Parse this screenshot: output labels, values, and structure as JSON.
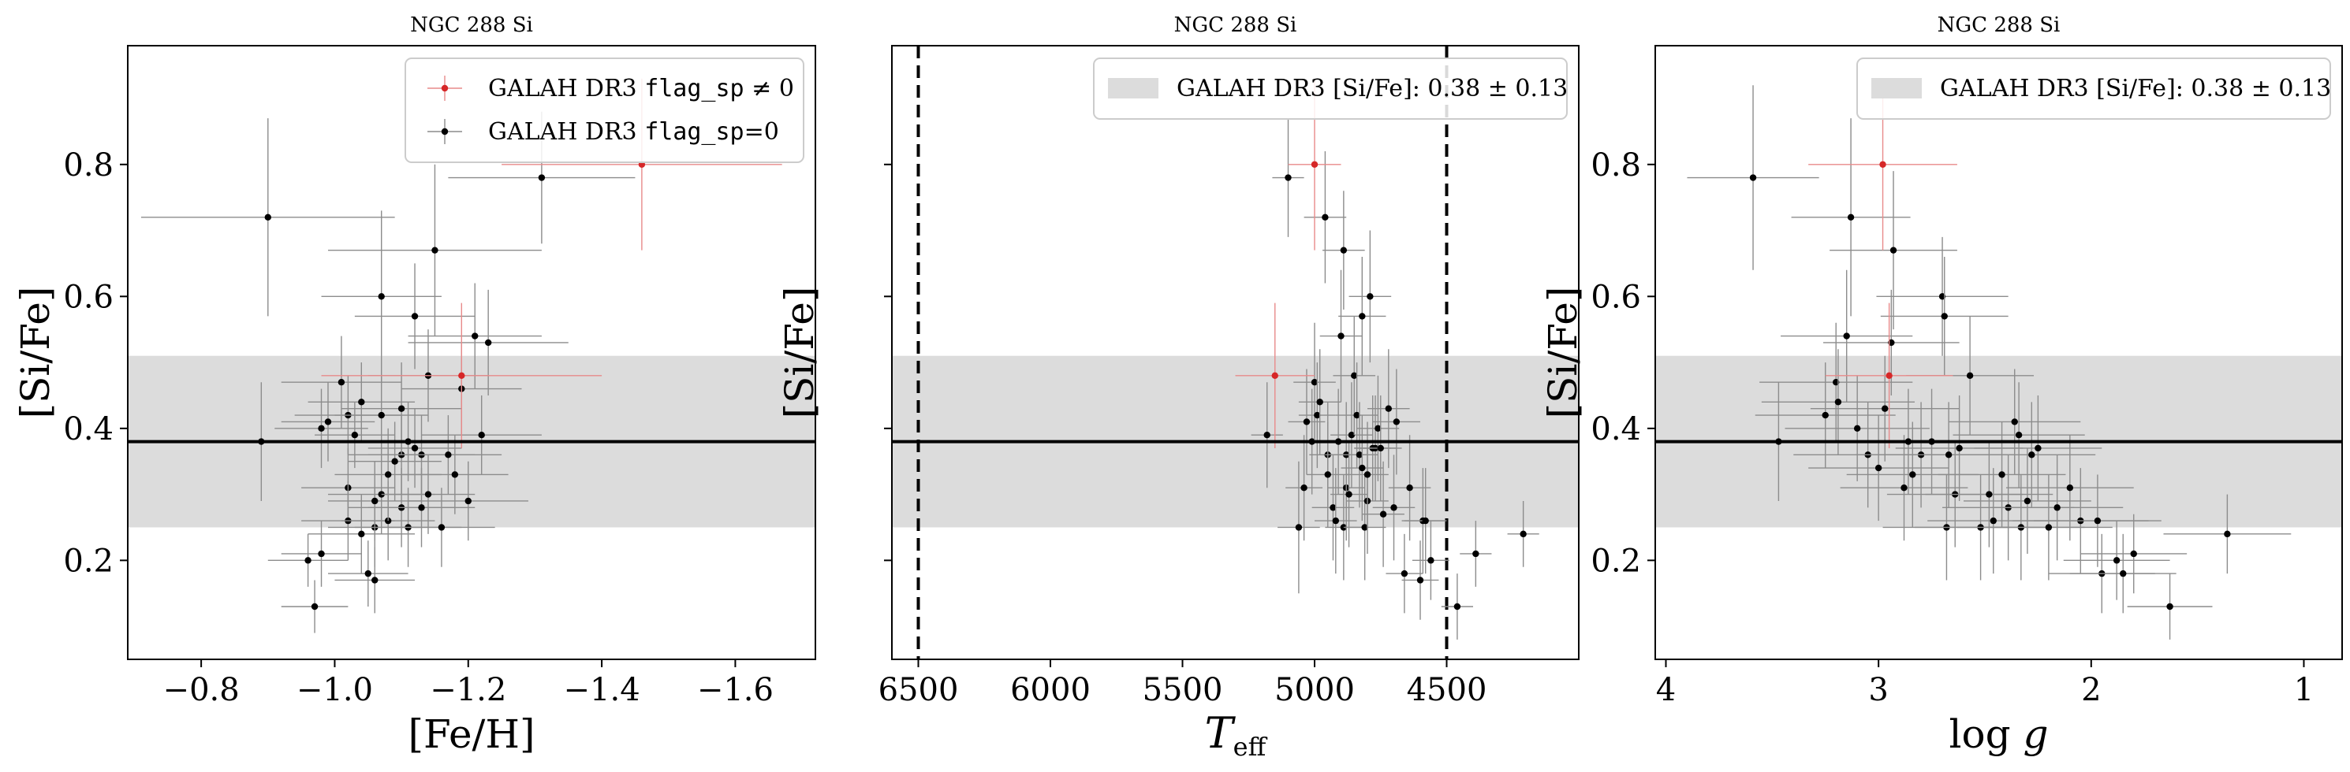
{
  "colors": {
    "normal": "#000000",
    "flagged": "#d62728",
    "band": "#dcdcdc",
    "errbar_normal": "#8c8c8c",
    "errbar_flagged": "#e88a8a"
  },
  "chart_data": [
    {
      "type": "scatter",
      "title": "NGC 288 Si",
      "xlabel": "[Fe/H]",
      "ylabel": "[Si/Fe]",
      "xlim": [
        -0.69,
        -1.72
      ],
      "ylim": [
        0.05,
        0.98
      ],
      "xticks": [
        -0.8,
        -1.0,
        -1.2,
        -1.4,
        -1.6
      ],
      "xtick_labels": [
        "−0.8",
        "−1.0",
        "−1.2",
        "−1.4",
        "−1.6"
      ],
      "yticks": [
        0.2,
        0.4,
        0.6,
        0.8
      ],
      "ytick_labels": [
        "0.2",
        "0.4",
        "0.6",
        "0.8"
      ],
      "reference": {
        "value": 0.38,
        "uncertainty": 0.13
      },
      "legend": {
        "position": "upper-right",
        "entries": [
          {
            "style": "flagged",
            "label_pre": "GALAH DR3 ",
            "label_code": "flag_sp",
            "label_post": " ≠ 0"
          },
          {
            "style": "normal",
            "label_pre": "GALAH DR3 ",
            "label_code": "flag_sp",
            "label_post": "=0"
          }
        ]
      },
      "series": [
        {
          "style": "normal",
          "points": [
            [
              -0.9,
              0.72,
              0.19,
              0.15
            ],
            [
              -0.89,
              0.38,
              0.12,
              0.09
            ],
            [
              -0.96,
              0.2,
              0.06,
              0.04
            ],
            [
              -0.97,
              0.13,
              0.05,
              0.04
            ],
            [
              -0.98,
              0.21,
              0.06,
              0.05
            ],
            [
              -0.98,
              0.4,
              0.07,
              0.06
            ],
            [
              -0.99,
              0.41,
              0.07,
              0.06
            ],
            [
              -1.01,
              0.47,
              0.09,
              0.07
            ],
            [
              -1.02,
              0.42,
              0.08,
              0.06
            ],
            [
              -1.02,
              0.31,
              0.07,
              0.06
            ],
            [
              -1.02,
              0.26,
              0.07,
              0.06
            ],
            [
              -1.03,
              0.39,
              0.06,
              0.05
            ],
            [
              -1.04,
              0.44,
              0.08,
              0.06
            ],
            [
              -1.04,
              0.24,
              0.08,
              0.06
            ],
            [
              -1.05,
              0.18,
              0.06,
              0.05
            ],
            [
              -1.06,
              0.17,
              0.06,
              0.05
            ],
            [
              -1.06,
              0.25,
              0.07,
              0.06
            ],
            [
              -1.06,
              0.29,
              0.07,
              0.06
            ],
            [
              -1.07,
              0.3,
              0.08,
              0.06
            ],
            [
              -1.07,
              0.42,
              0.07,
              0.06
            ],
            [
              -1.07,
              0.6,
              0.09,
              0.13
            ],
            [
              -1.08,
              0.26,
              0.07,
              0.06
            ],
            [
              -1.08,
              0.33,
              0.08,
              0.07
            ],
            [
              -1.09,
              0.35,
              0.07,
              0.06
            ],
            [
              -1.1,
              0.28,
              0.08,
              0.06
            ],
            [
              -1.1,
              0.36,
              0.08,
              0.06
            ],
            [
              -1.1,
              0.43,
              0.09,
              0.07
            ],
            [
              -1.11,
              0.25,
              0.08,
              0.06
            ],
            [
              -1.11,
              0.38,
              0.08,
              0.06
            ],
            [
              -1.12,
              0.37,
              0.07,
              0.06
            ],
            [
              -1.12,
              0.57,
              0.09,
              0.08
            ],
            [
              -1.13,
              0.28,
              0.08,
              0.06
            ],
            [
              -1.13,
              0.36,
              0.08,
              0.06
            ],
            [
              -1.14,
              0.3,
              0.07,
              0.06
            ],
            [
              -1.14,
              0.48,
              0.09,
              0.07
            ],
            [
              -1.15,
              0.67,
              0.16,
              0.13
            ],
            [
              -1.16,
              0.25,
              0.08,
              0.06
            ],
            [
              -1.17,
              0.36,
              0.08,
              0.06
            ],
            [
              -1.18,
              0.33,
              0.08,
              0.06
            ],
            [
              -1.19,
              0.46,
              0.09,
              0.07
            ],
            [
              -1.2,
              0.29,
              0.09,
              0.06
            ],
            [
              -1.21,
              0.54,
              0.1,
              0.08
            ],
            [
              -1.22,
              0.39,
              0.09,
              0.06
            ],
            [
              -1.23,
              0.53,
              0.12,
              0.08
            ],
            [
              -1.31,
              0.78,
              0.14,
              0.1
            ]
          ]
        },
        {
          "style": "flagged",
          "points": [
            [
              -1.19,
              0.48,
              0.21,
              0.11
            ],
            [
              -1.46,
              0.8,
              0.21,
              0.13
            ]
          ]
        }
      ]
    },
    {
      "type": "scatter",
      "title": "NGC 288 Si",
      "xlabel": "T_eff",
      "ylabel": "[Si/Fe]",
      "xlim": [
        6600,
        4000
      ],
      "ylim": [
        0.05,
        0.98
      ],
      "xticks": [
        6500,
        6000,
        5500,
        5000,
        4500
      ],
      "xtick_labels": [
        "6500",
        "6000",
        "5500",
        "5000",
        "4500"
      ],
      "yticks": [
        0.2,
        0.4,
        0.6,
        0.8
      ],
      "ytick_labels": [],
      "vlines": [
        6500,
        4500
      ],
      "reference": {
        "value": 0.38,
        "uncertainty": 0.13
      },
      "legend": {
        "position": "upper-right",
        "entries": [
          {
            "style": "band",
            "label_pre": "GALAH DR3 [Si/Fe]: 0.38 ± 0.13",
            "label_code": "",
            "label_post": ""
          }
        ]
      },
      "series": [
        {
          "style": "normal",
          "points": [
            [
              5180,
              0.39,
              60,
              0.08
            ],
            [
              5100,
              0.78,
              60,
              0.09
            ],
            [
              5060,
              0.25,
              80,
              0.1
            ],
            [
              5040,
              0.31,
              70,
              0.08
            ],
            [
              5030,
              0.41,
              70,
              0.08
            ],
            [
              5010,
              0.38,
              70,
              0.08
            ],
            [
              5000,
              0.47,
              80,
              0.09
            ],
            [
              4990,
              0.42,
              70,
              0.08
            ],
            [
              4980,
              0.44,
              80,
              0.08
            ],
            [
              4960,
              0.72,
              80,
              0.1
            ],
            [
              4950,
              0.36,
              70,
              0.08
            ],
            [
              4950,
              0.33,
              80,
              0.08
            ],
            [
              4930,
              0.28,
              80,
              0.08
            ],
            [
              4920,
              0.26,
              80,
              0.08
            ],
            [
              4910,
              0.38,
              70,
              0.08
            ],
            [
              4900,
              0.54,
              80,
              0.1
            ],
            [
              4890,
              0.67,
              80,
              0.09
            ],
            [
              4890,
              0.25,
              70,
              0.08
            ],
            [
              4880,
              0.31,
              70,
              0.08
            ],
            [
              4880,
              0.36,
              80,
              0.08
            ],
            [
              4870,
              0.3,
              70,
              0.08
            ],
            [
              4860,
              0.39,
              80,
              0.08
            ],
            [
              4850,
              0.48,
              80,
              0.09
            ],
            [
              4840,
              0.42,
              80,
              0.08
            ],
            [
              4830,
              0.36,
              70,
              0.08
            ],
            [
              4820,
              0.34,
              80,
              0.08
            ],
            [
              4820,
              0.57,
              90,
              0.09
            ],
            [
              4810,
              0.25,
              80,
              0.08
            ],
            [
              4800,
              0.29,
              80,
              0.08
            ],
            [
              4800,
              0.33,
              80,
              0.08
            ],
            [
              4790,
              0.6,
              80,
              0.1
            ],
            [
              4780,
              0.37,
              70,
              0.08
            ],
            [
              4770,
              0.37,
              80,
              0.08
            ],
            [
              4760,
              0.4,
              80,
              0.08
            ],
            [
              4750,
              0.37,
              80,
              0.08
            ],
            [
              4740,
              0.27,
              80,
              0.08
            ],
            [
              4720,
              0.43,
              80,
              0.09
            ],
            [
              4700,
              0.28,
              80,
              0.08
            ],
            [
              4690,
              0.41,
              90,
              0.08
            ],
            [
              4660,
              0.18,
              70,
              0.06
            ],
            [
              4640,
              0.31,
              80,
              0.08
            ],
            [
              4600,
              0.17,
              70,
              0.06
            ],
            [
              4590,
              0.26,
              80,
              0.08
            ],
            [
              4580,
              0.26,
              80,
              0.08
            ],
            [
              4560,
              0.2,
              70,
              0.06
            ],
            [
              4460,
              0.13,
              60,
              0.05
            ],
            [
              4390,
              0.21,
              60,
              0.05
            ],
            [
              4210,
              0.24,
              60,
              0.05
            ]
          ]
        },
        {
          "style": "flagged",
          "points": [
            [
              5150,
              0.48,
              150,
              0.11
            ],
            [
              5000,
              0.8,
              100,
              0.13
            ]
          ]
        }
      ]
    },
    {
      "type": "scatter",
      "title": "NGC 288 Si",
      "xlabel": "log g",
      "ylabel": "[Si/Fe]",
      "xlim": [
        4.05,
        0.82
      ],
      "ylim": [
        0.05,
        0.98
      ],
      "xticks": [
        4,
        3,
        2,
        1
      ],
      "xtick_labels": [
        "4",
        "3",
        "2",
        "1"
      ],
      "yticks": [
        0.2,
        0.4,
        0.6,
        0.8
      ],
      "ytick_labels": [
        "0.2",
        "0.4",
        "0.6",
        "0.8"
      ],
      "reference": {
        "value": 0.38,
        "uncertainty": 0.13
      },
      "legend": {
        "position": "upper-right",
        "entries": [
          {
            "style": "band",
            "label_pre": "GALAH DR3 [Si/Fe]: 0.38 ± 0.13",
            "label_code": "",
            "label_post": ""
          }
        ]
      },
      "series": [
        {
          "style": "normal",
          "points": [
            [
              3.59,
              0.78,
              0.31,
              0.14
            ],
            [
              3.47,
              0.38,
              0.4,
              0.09
            ],
            [
              3.25,
              0.42,
              0.33,
              0.08
            ],
            [
              3.2,
              0.47,
              0.36,
              0.09
            ],
            [
              3.19,
              0.44,
              0.36,
              0.08
            ],
            [
              3.15,
              0.54,
              0.31,
              0.1
            ],
            [
              3.13,
              0.72,
              0.28,
              0.15
            ],
            [
              3.1,
              0.4,
              0.34,
              0.08
            ],
            [
              3.05,
              0.36,
              0.35,
              0.08
            ],
            [
              3.0,
              0.34,
              0.33,
              0.08
            ],
            [
              2.97,
              0.43,
              0.35,
              0.08
            ],
            [
              2.94,
              0.53,
              0.32,
              0.08
            ],
            [
              2.93,
              0.67,
              0.3,
              0.12
            ],
            [
              2.88,
              0.31,
              0.3,
              0.08
            ],
            [
              2.86,
              0.38,
              0.32,
              0.08
            ],
            [
              2.84,
              0.33,
              0.31,
              0.08
            ],
            [
              2.8,
              0.36,
              0.31,
              0.08
            ],
            [
              2.75,
              0.38,
              0.33,
              0.08
            ],
            [
              2.7,
              0.6,
              0.31,
              0.09
            ],
            [
              2.69,
              0.57,
              0.3,
              0.09
            ],
            [
              2.68,
              0.25,
              0.3,
              0.08
            ],
            [
              2.67,
              0.36,
              0.31,
              0.08
            ],
            [
              2.64,
              0.3,
              0.32,
              0.08
            ],
            [
              2.62,
              0.37,
              0.3,
              0.08
            ],
            [
              2.57,
              0.48,
              0.3,
              0.09
            ],
            [
              2.52,
              0.25,
              0.31,
              0.08
            ],
            [
              2.48,
              0.3,
              0.3,
              0.08
            ],
            [
              2.46,
              0.26,
              0.31,
              0.08
            ],
            [
              2.42,
              0.33,
              0.3,
              0.08
            ],
            [
              2.39,
              0.28,
              0.31,
              0.08
            ],
            [
              2.36,
              0.41,
              0.31,
              0.08
            ],
            [
              2.34,
              0.39,
              0.31,
              0.08
            ],
            [
              2.33,
              0.25,
              0.3,
              0.08
            ],
            [
              2.3,
              0.29,
              0.3,
              0.08
            ],
            [
              2.28,
              0.36,
              0.3,
              0.08
            ],
            [
              2.25,
              0.37,
              0.3,
              0.08
            ],
            [
              2.2,
              0.25,
              0.3,
              0.08
            ],
            [
              2.16,
              0.28,
              0.31,
              0.08
            ],
            [
              2.1,
              0.31,
              0.3,
              0.08
            ],
            [
              2.05,
              0.26,
              0.32,
              0.08
            ],
            [
              1.97,
              0.26,
              0.3,
              0.07
            ],
            [
              1.95,
              0.18,
              0.25,
              0.06
            ],
            [
              1.88,
              0.2,
              0.25,
              0.06
            ],
            [
              1.85,
              0.18,
              0.25,
              0.06
            ],
            [
              1.8,
              0.21,
              0.25,
              0.06
            ],
            [
              1.63,
              0.13,
              0.2,
              0.05
            ],
            [
              1.36,
              0.24,
              0.3,
              0.06
            ]
          ]
        },
        {
          "style": "flagged",
          "points": [
            [
              2.98,
              0.8,
              0.35,
              0.13
            ],
            [
              2.95,
              0.48,
              0.3,
              0.11
            ]
          ]
        }
      ]
    }
  ]
}
